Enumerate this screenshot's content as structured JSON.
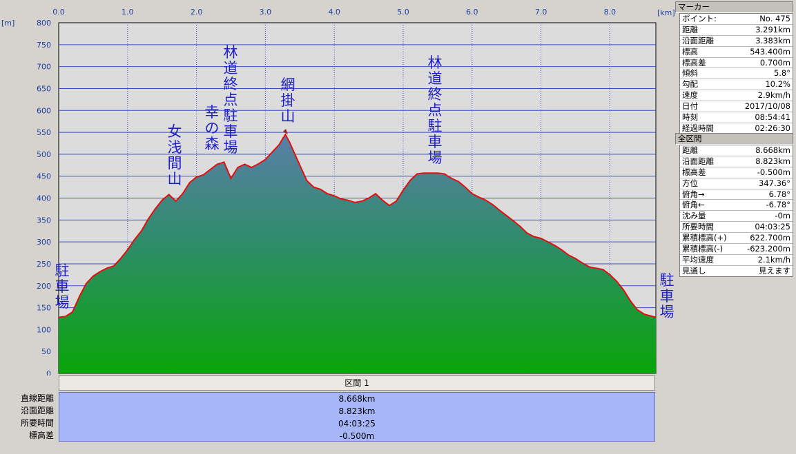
{
  "chart_data": {
    "type": "area",
    "unit_x": "[km]",
    "unit_y": "[m]",
    "x_ticks": [
      "0.0",
      "1.0",
      "2.0",
      "3.0",
      "4.0",
      "5.0",
      "6.0",
      "7.0",
      "8.0"
    ],
    "y_ticks": [
      "0",
      "50",
      "100",
      "150",
      "200",
      "250",
      "300",
      "350",
      "400",
      "450",
      "500",
      "550",
      "600",
      "650",
      "700",
      "750",
      "800"
    ],
    "xlim": [
      0,
      8.668
    ],
    "ylim": [
      0,
      800
    ],
    "grid": true,
    "series": [
      {
        "x": [
          0,
          0.1,
          0.2,
          0.3,
          0.4,
          0.5,
          0.6,
          0.7,
          0.8,
          0.9,
          1.0,
          1.1,
          1.2,
          1.3,
          1.4,
          1.5,
          1.6,
          1.7,
          1.8,
          1.9,
          2.0,
          2.1,
          2.2,
          2.3,
          2.4,
          2.5,
          2.6,
          2.7,
          2.8,
          2.9,
          3.0,
          3.1,
          3.2,
          3.25,
          3.29,
          3.35,
          3.4,
          3.5,
          3.6,
          3.7,
          3.8,
          3.9,
          4.0,
          4.1,
          4.2,
          4.3,
          4.4,
          4.5,
          4.6,
          4.7,
          4.8,
          4.9,
          5.0,
          5.1,
          5.2,
          5.3,
          5.4,
          5.5,
          5.6,
          5.7,
          5.8,
          5.9,
          6.0,
          6.1,
          6.2,
          6.3,
          6.4,
          6.5,
          6.6,
          6.7,
          6.8,
          6.9,
          7.0,
          7.1,
          7.2,
          7.3,
          7.4,
          7.5,
          7.6,
          7.7,
          7.8,
          7.9,
          8.0,
          8.1,
          8.2,
          8.3,
          8.4,
          8.5,
          8.668
        ],
        "y": [
          128,
          130,
          140,
          175,
          205,
          222,
          232,
          240,
          245,
          262,
          282,
          305,
          325,
          352,
          375,
          395,
          408,
          393,
          410,
          435,
          448,
          453,
          465,
          477,
          482,
          445,
          470,
          477,
          470,
          478,
          488,
          505,
          522,
          535,
          545,
          528,
          510,
          475,
          440,
          425,
          420,
          410,
          405,
          398,
          395,
          390,
          393,
          400,
          410,
          395,
          383,
          393,
          418,
          440,
          455,
          457,
          457,
          457,
          455,
          445,
          438,
          425,
          410,
          402,
          395,
          385,
          372,
          360,
          348,
          335,
          320,
          312,
          308,
          300,
          292,
          282,
          270,
          262,
          252,
          243,
          240,
          237,
          225,
          210,
          190,
          165,
          145,
          135,
          128
        ]
      }
    ],
    "annotations": [
      {
        "text": "駐車場",
        "x": 0.0
      },
      {
        "text": "女浅間山",
        "x": 1.6
      },
      {
        "text": "幸の森",
        "x": 2.2
      },
      {
        "text": "林道終点駐車場",
        "x": 2.5
      },
      {
        "text": "網掛山",
        "x": 3.3
      },
      {
        "text": "林道終点駐車場",
        "x": 5.45
      },
      {
        "text": "駐車場",
        "x": 8.668
      }
    ]
  },
  "marker_panel": {
    "title": "マーカー",
    "rows": [
      {
        "k": "ポイント:",
        "v": "No. 475"
      },
      {
        "k": "距離",
        "v": "3.291km"
      },
      {
        "k": "沿面距離",
        "v": "3.383km"
      },
      {
        "k": "標高",
        "v": "543.400m"
      },
      {
        "k": "標高差",
        "v": "0.700m"
      },
      {
        "k": "傾斜",
        "v": "5.8°"
      },
      {
        "k": "勾配",
        "v": "10.2%"
      },
      {
        "k": "速度",
        "v": "2.9km/h"
      },
      {
        "k": "日付",
        "v": "2017/10/08"
      },
      {
        "k": "時刻",
        "v": "08:54:41"
      },
      {
        "k": "経過時間",
        "v": "02:26:30"
      }
    ]
  },
  "total_panel": {
    "title": "全区間",
    "rows": [
      {
        "k": "距離",
        "v": "8.668km"
      },
      {
        "k": "沿面距離",
        "v": "8.823km"
      },
      {
        "k": "標高差",
        "v": "-0.500m"
      },
      {
        "k": "方位",
        "v": "347.36°"
      },
      {
        "k": "俯角→",
        "v": "6.78°"
      },
      {
        "k": "俯角←",
        "v": "-6.78°"
      },
      {
        "k": "沈み量",
        "v": "-0m"
      },
      {
        "k": "所要時間",
        "v": "04:03:25"
      },
      {
        "k": "累積標高(+)",
        "v": "622.700m"
      },
      {
        "k": "累積標高(-)",
        "v": "-623.200m"
      },
      {
        "k": "平均速度",
        "v": "2.1km/h"
      },
      {
        "k": "見通し",
        "v": "見えます"
      }
    ]
  },
  "section": {
    "title": "区間 1",
    "labels": [
      "直線距離",
      "沿面距離",
      "所要時間",
      "標高差"
    ],
    "values": [
      "8.668km",
      "8.823km",
      "04:03:25",
      "-0.500m"
    ]
  },
  "colors": {
    "plot_bg": "#dcdcdc",
    "grid": "#3a4ecb",
    "profile_line": "#e01010",
    "fill_top": "#4a7fa4",
    "fill_bottom": "#0aa00a"
  }
}
